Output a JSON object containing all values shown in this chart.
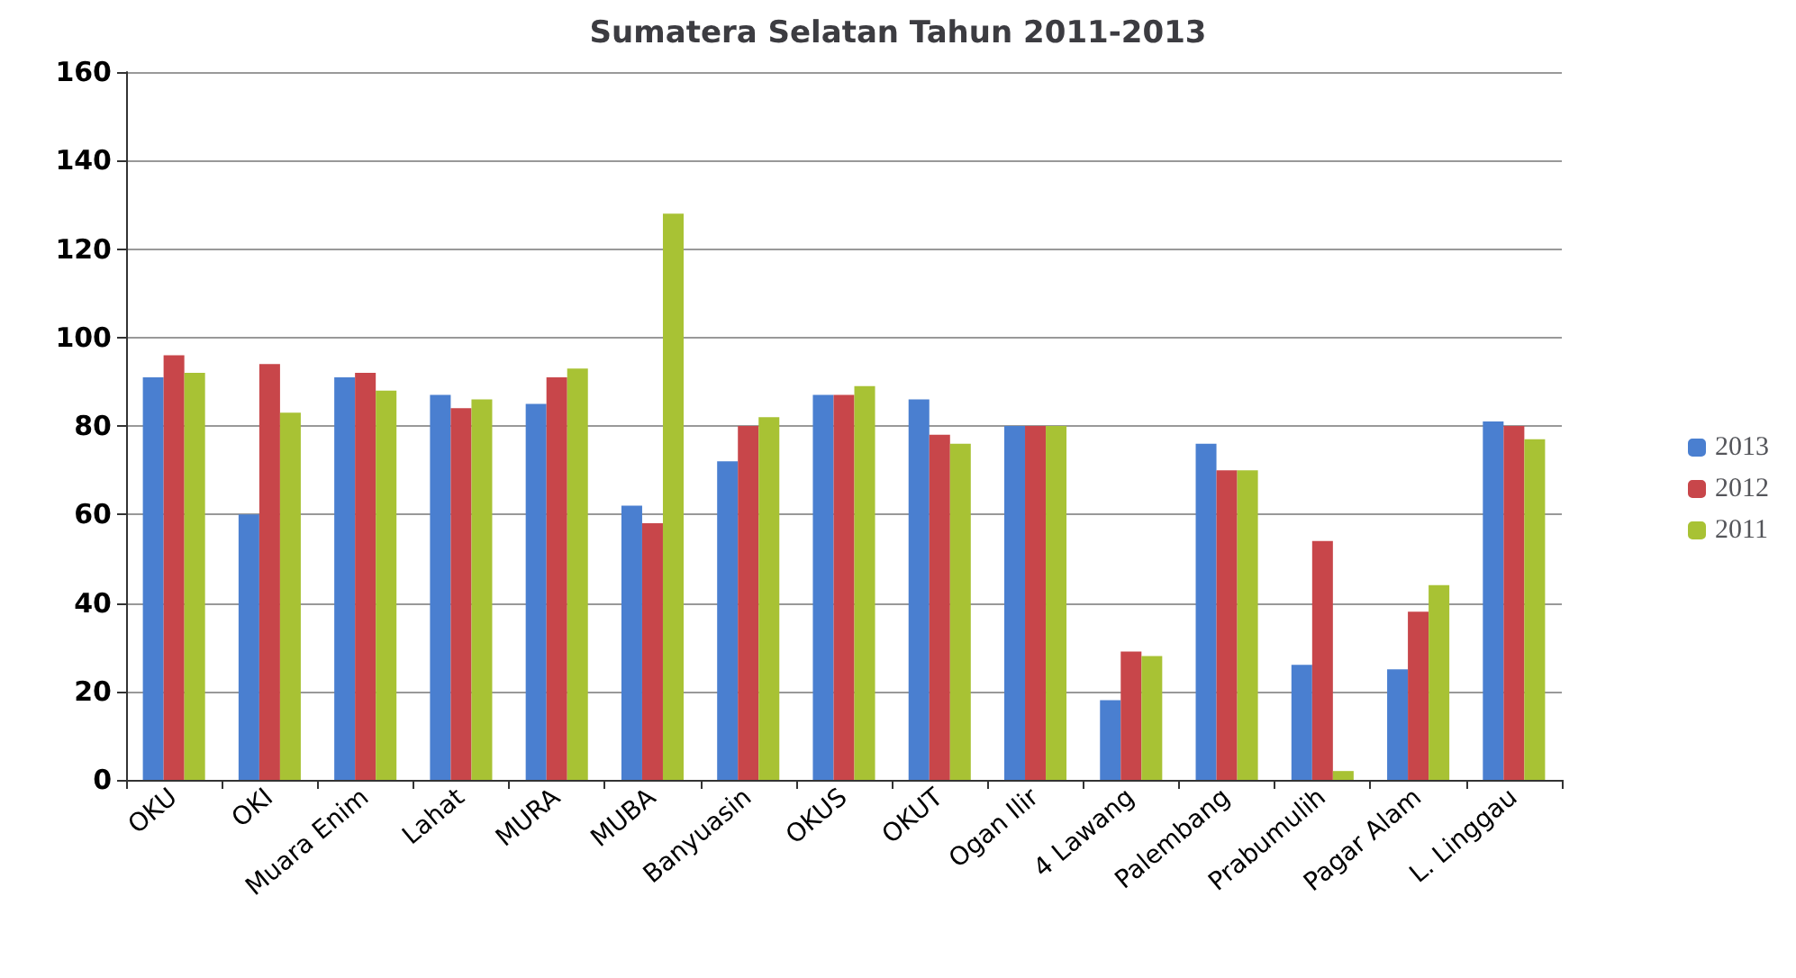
{
  "chart_data": {
    "type": "bar",
    "title": "Sumatera Selatan Tahun 2011-2013",
    "categories": [
      "OKU",
      "OKI",
      "Muara Enim",
      "Lahat",
      "MURA",
      "MUBA",
      "Banyuasin",
      "OKUS",
      "OKUT",
      "Ogan Ilir",
      "4 Lawang",
      "Palembang",
      "Prabumulih",
      "Pagar Alam",
      "L. Linggau"
    ],
    "series": [
      {
        "name": "2013",
        "color": "#4a7fd0",
        "values": [
          91,
          60,
          91,
          87,
          85,
          62,
          72,
          87,
          86,
          80,
          18,
          76,
          26,
          25,
          81
        ]
      },
      {
        "name": "2012",
        "color": "#c8464a",
        "values": [
          96,
          94,
          92,
          84,
          91,
          58,
          80,
          87,
          78,
          80,
          29,
          70,
          54,
          38,
          80
        ]
      },
      {
        "name": "2011",
        "color": "#a8c234",
        "values": [
          92,
          83,
          88,
          86,
          93,
          128,
          82,
          89,
          76,
          80,
          28,
          70,
          2,
          44,
          77
        ]
      }
    ],
    "ylim": [
      0,
      160
    ],
    "yticks": [
      0,
      20,
      40,
      60,
      80,
      100,
      120,
      140,
      160
    ],
    "grid": "y",
    "legend": "right"
  }
}
